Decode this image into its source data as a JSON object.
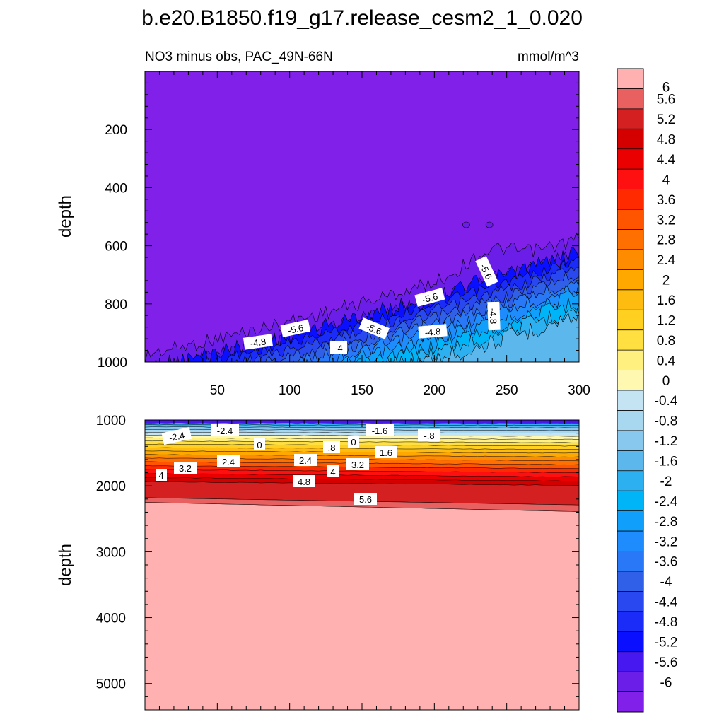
{
  "chart_data": {
    "type": "contour",
    "title": "b.e20.B1850.f19_g17.release_cesm2_1_0.020",
    "units": "mmol/m^3",
    "panels": [
      {
        "name": "upper",
        "subtitle": "NO3 minus obs, PAC_49N-66N",
        "ylabel": "depth",
        "xlim": [
          0,
          300
        ],
        "ylim": [
          0,
          1000
        ],
        "x_ticks": [
          "50",
          "100",
          "150",
          "200",
          "250",
          "300"
        ],
        "y_ticks": [
          "200",
          "400",
          "600",
          "800",
          "1000"
        ],
        "contour_labels": [
          "-5.6",
          "-5.6",
          "-5.6",
          "-4.8",
          "-4.8",
          "-5.6",
          "-4",
          "-4.8"
        ]
      },
      {
        "name": "lower",
        "ylabel": "depth",
        "xlim": [
          0,
          300
        ],
        "ylim": [
          1000,
          5400
        ],
        "y_ticks": [
          "1000",
          "2000",
          "3000",
          "4000",
          "5000"
        ],
        "contour_labels": [
          "-2.4",
          "-2.4",
          "-1.6",
          "-.8",
          "0",
          "0",
          ".8",
          "1.6",
          "2.4",
          "2.4",
          "3.2",
          "3.2",
          "4",
          "4",
          "4.8",
          "5.6"
        ]
      }
    ],
    "colorbar": {
      "labels": [
        "6",
        "5.6",
        "5.2",
        "4.8",
        "4.4",
        "4",
        "3.6",
        "3.2",
        "2.8",
        "2.4",
        "2",
        "1.6",
        "1.2",
        "0.8",
        "0.4",
        "0",
        "-0.4",
        "-0.8",
        "-1.2",
        "-1.6",
        "-2",
        "-2.4",
        "-2.8",
        "-3.2",
        "-3.6",
        "-4",
        "-4.4",
        "-4.8",
        "-5.2",
        "-5.6",
        "-6"
      ],
      "colors": [
        "#ffb0b0",
        "#e86060",
        "#d42020",
        "#d40000",
        "#ea0000",
        "#ff1010",
        "#ff2a00",
        "#ff5400",
        "#ff7000",
        "#ff8c00",
        "#ffa800",
        "#ffbc10",
        "#ffd020",
        "#ffe040",
        "#fff080",
        "#fff8b0",
        "#c4e4f4",
        "#a8d8f0",
        "#88c8ee",
        "#5cb8ec",
        "#2cb0f0",
        "#00b4f8",
        "#10a0fc",
        "#1e8cfc",
        "#2878f8",
        "#3060e8",
        "#2a48f0",
        "#1c2cf8",
        "#0a10ff",
        "#4818f0",
        "#6a1ee8",
        "#8020e8"
      ]
    }
  }
}
